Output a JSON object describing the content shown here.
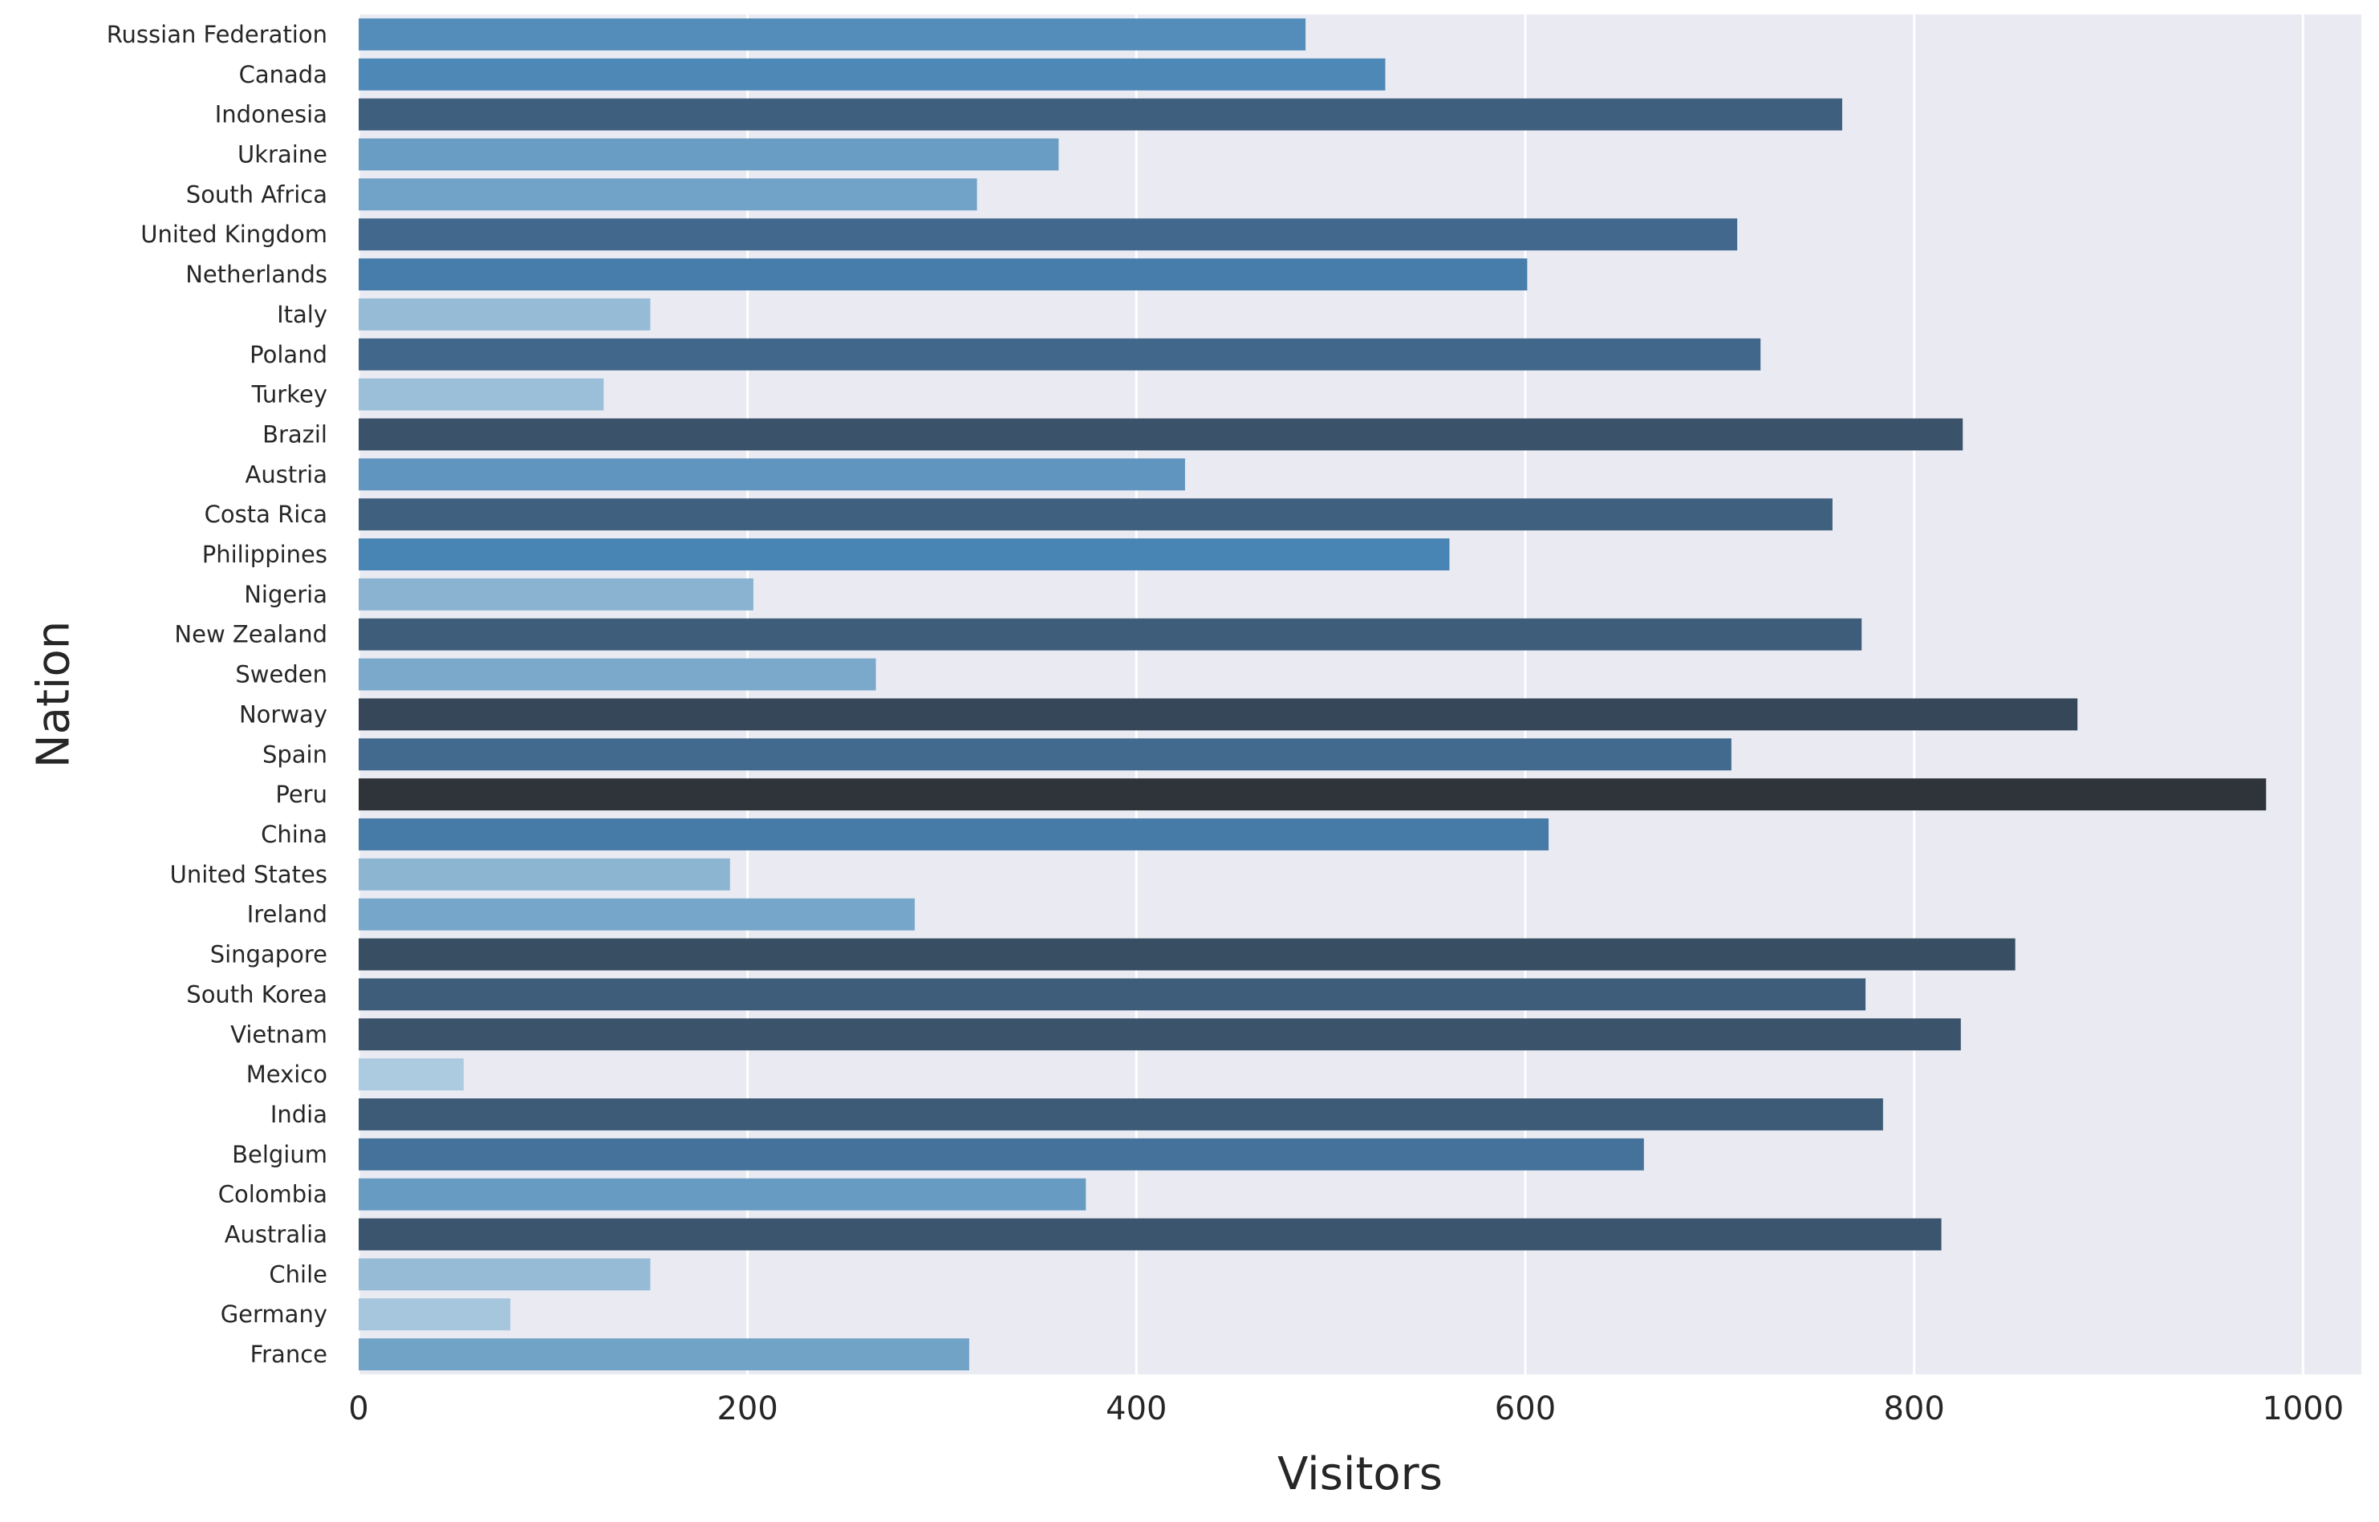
{
  "chart_data": {
    "type": "bar",
    "orientation": "horizontal",
    "xlabel": "Visitors",
    "ylabel": "Nation",
    "xlim": [
      0,
      1030
    ],
    "xticks": [
      0,
      200,
      400,
      600,
      800,
      1000
    ],
    "grid": "vertical",
    "background": "#eaeaf2",
    "gridline_color": "#ffffff",
    "palette": "Blues_d (shade scales with value)",
    "colors": {
      "darkest": "#2f343b",
      "dark": "#3e5f7e",
      "mid": "#4a86b5",
      "light": "#72a4c8",
      "lightest": "#a8c8de"
    },
    "categories": [
      "Russian Federation",
      "Canada",
      "Indonesia",
      "Ukraine",
      "South Africa",
      "United Kingdom",
      "Netherlands",
      "Italy",
      "Poland",
      "Turkey",
      "Brazil",
      "Austria",
      "Costa Rica",
      "Philippines",
      "Nigeria",
      "New Zealand",
      "Sweden",
      "Norway",
      "Spain",
      "Peru",
      "China",
      "United States",
      "Ireland",
      "Singapore",
      "South Korea",
      "Vietnam",
      "Mexico",
      "India",
      "Belgium",
      "Colombia",
      "Australia",
      "Chile",
      "Germany",
      "France"
    ],
    "values": [
      487,
      528,
      763,
      360,
      318,
      709,
      601,
      150,
      721,
      126,
      825,
      425,
      758,
      561,
      203,
      773,
      266,
      884,
      706,
      981,
      612,
      191,
      286,
      852,
      775,
      824,
      54,
      784,
      661,
      374,
      814,
      150,
      78,
      314
    ]
  }
}
